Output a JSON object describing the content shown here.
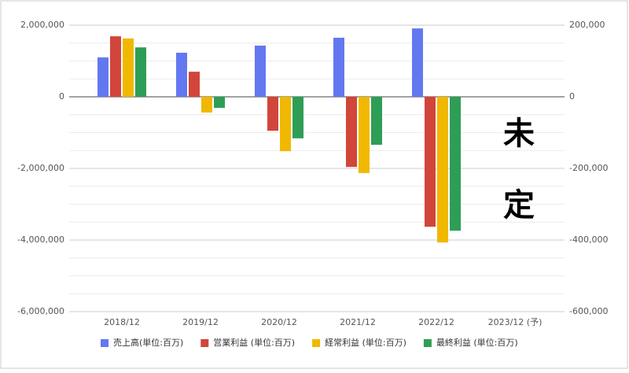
{
  "chart_data": {
    "type": "bar",
    "categories": [
      "2018/12",
      "2019/12",
      "2020/12",
      "2021/12",
      "2022/12",
      "2023/12 (予)"
    ],
    "series": [
      {
        "name": "売上高(単位:百万)",
        "color": "#6378f0",
        "axis": "y",
        "values": [
          1100000,
          1230000,
          1430000,
          1650000,
          1910000,
          null
        ]
      },
      {
        "name": "営業利益 (単位:百万)",
        "color": "#d2453a",
        "axis": "y2",
        "values": [
          169000,
          70000,
          -95000,
          -196000,
          -363000,
          null
        ]
      },
      {
        "name": "経常利益 (単位:百万)",
        "color": "#f0b800",
        "axis": "y2",
        "values": [
          163000,
          -44000,
          -152000,
          -213000,
          -407000,
          null
        ]
      },
      {
        "name": "最終利益 (単位:百万)",
        "color": "#2e9e56",
        "axis": "y2",
        "values": [
          138000,
          -31000,
          -116000,
          -134000,
          -374000,
          null
        ]
      }
    ],
    "ylim": [
      -6000000,
      2000000
    ],
    "yticks": [
      {
        "value": -6000000,
        "label": "-6,000,000"
      },
      {
        "value": -4000000,
        "label": "-4,000,000"
      },
      {
        "value": -2000000,
        "label": "-2,000,000"
      },
      0,
      {
        "value": 2000000,
        "label": "2,000,000"
      }
    ],
    "y2lim": [
      -600000,
      200000
    ],
    "y2ticks": [
      {
        "value": -600000,
        "label": "-600,000"
      },
      {
        "value": -400000,
        "label": "-400,000"
      },
      {
        "value": -200000,
        "label": "-200,000"
      },
      0,
      {
        "value": 200000,
        "label": "200,000"
      }
    ],
    "annotations": [
      "未",
      "定"
    ],
    "grid": true,
    "legend": "bottom"
  }
}
